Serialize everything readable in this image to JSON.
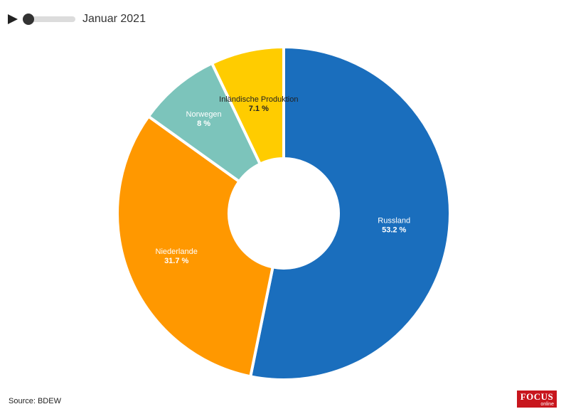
{
  "timeline": {
    "period_label": "Januar 2021",
    "play_icon": "play-icon",
    "progress": 0.0
  },
  "source_text": "Source: BDEW",
  "logo": {
    "main": "FOCUS",
    "sub": "online"
  },
  "colors": {
    "russland": "#1a6ebd",
    "niederlande": "#ff9800",
    "norwegen": "#7cc4bb",
    "inland": "#ffcc00"
  },
  "chart_data": {
    "type": "pie",
    "donut": true,
    "slices": [
      {
        "label": "Russland",
        "value": 53.2,
        "value_label": "53.2 %",
        "color": "#1a6ebd"
      },
      {
        "label": "Niederlande",
        "value": 31.7,
        "value_label": "31.7 %",
        "color": "#ff9800"
      },
      {
        "label": "Norwegen",
        "value": 8,
        "value_label": "8 %",
        "color": "#7cc4bb"
      },
      {
        "label": "Inländische Produktion",
        "value": 7.1,
        "value_label": "7.1 %",
        "color": "#ffcc00"
      }
    ]
  }
}
